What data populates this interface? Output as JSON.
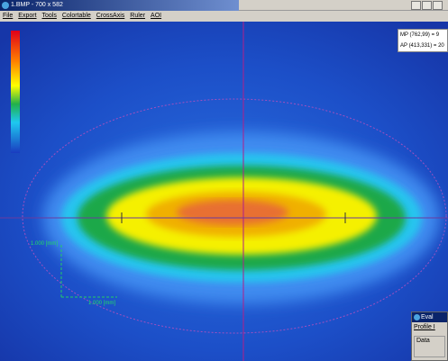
{
  "window": {
    "title": "1.BMP - 700 x 582",
    "menu": [
      "File",
      "Export",
      "Tools",
      "Colortable",
      "CrossAxis",
      "Ruler",
      "AOI"
    ],
    "info": [
      "MP (762,99) = 9",
      "AP (413,331) = 20"
    ],
    "scale_labels": [
      "1.000 [mm]",
      "1.000 [mm]"
    ]
  },
  "dialog": {
    "title": "Eval",
    "menu": "Profile I",
    "group": "Data"
  }
}
